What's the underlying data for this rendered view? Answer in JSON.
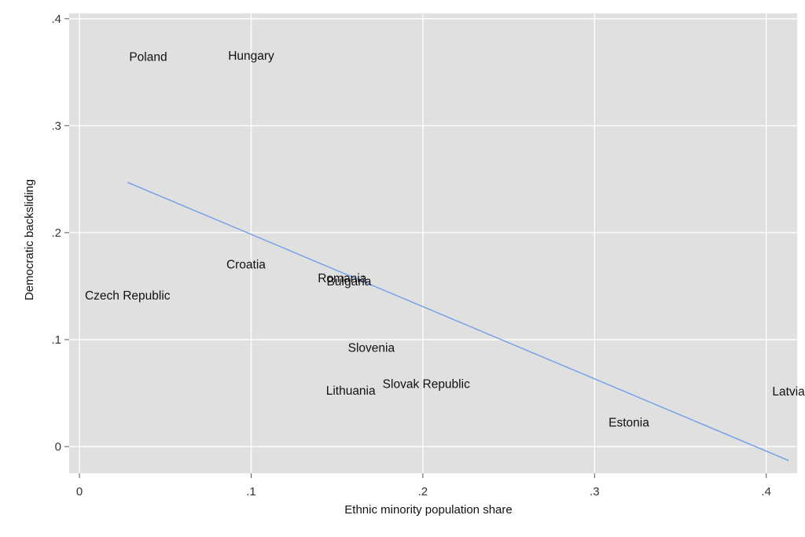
{
  "chart_data": {
    "type": "scatter",
    "xlabel": "Ethnic minority population share",
    "ylabel": "Democratic backsliding",
    "xlim": [
      -0.006,
      0.418
    ],
    "ylim": [
      -0.025,
      0.405
    ],
    "x_ticks": [
      {
        "value": 0,
        "label": "0"
      },
      {
        "value": 0.1,
        "label": ".1"
      },
      {
        "value": 0.2,
        "label": ".2"
      },
      {
        "value": 0.3,
        "label": ".3"
      },
      {
        "value": 0.4,
        "label": ".4"
      }
    ],
    "y_ticks": [
      {
        "value": 0,
        "label": "0"
      },
      {
        "value": 0.1,
        "label": ".1"
      },
      {
        "value": 0.2,
        "label": ".2"
      },
      {
        "value": 0.3,
        "label": ".3"
      },
      {
        "value": 0.4,
        "label": ".4"
      }
    ],
    "grid": true,
    "points": [
      {
        "label": "Poland",
        "x": 0.04,
        "y": 0.365
      },
      {
        "label": "Hungary",
        "x": 0.1,
        "y": 0.366
      },
      {
        "label": "Croatia",
        "x": 0.097,
        "y": 0.171
      },
      {
        "label": "Czech Republic",
        "x": 0.028,
        "y": 0.142
      },
      {
        "label": "Romania",
        "x": 0.153,
        "y": 0.158
      },
      {
        "label": "Bulgaria",
        "x": 0.157,
        "y": 0.155
      },
      {
        "label": "Slovenia",
        "x": 0.17,
        "y": 0.093
      },
      {
        "label": "Slovak Republic",
        "x": 0.202,
        "y": 0.059
      },
      {
        "label": "Lithuania",
        "x": 0.158,
        "y": 0.053
      },
      {
        "label": "Estonia",
        "x": 0.32,
        "y": 0.023
      },
      {
        "label": "Latvia",
        "x": 0.413,
        "y": 0.052
      }
    ],
    "fit_line": {
      "x": [
        0.028,
        0.413
      ],
      "y": [
        0.247,
        -0.013
      ],
      "color": "#6f9fe8"
    },
    "colors": {
      "plot_background": "#e0e0e0",
      "grid": "#ffffff",
      "fit_line": "#6f9fe8"
    }
  }
}
